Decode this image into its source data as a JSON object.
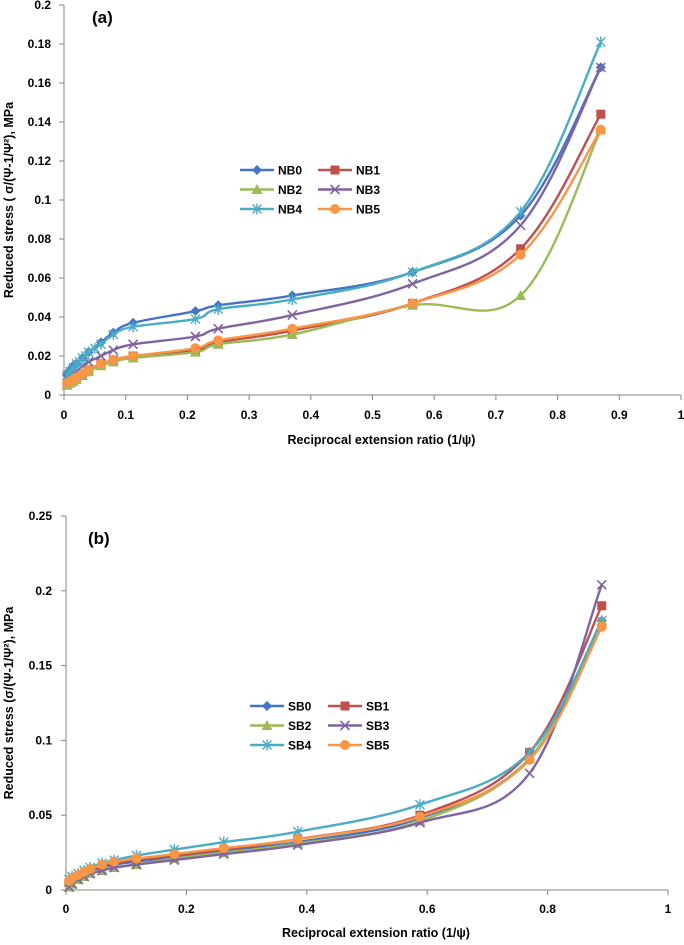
{
  "chart_data": [
    {
      "type": "line",
      "panel_label": "(a)",
      "xlabel": "Reciprocal extension ratio (1/ψ)",
      "ylabel": "Reduced stress ( σ/(Ψ-1/Ψ²), MPa",
      "xlim": [
        0,
        1
      ],
      "ylim": [
        0,
        0.2
      ],
      "xticks": [
        0,
        0.1,
        0.2,
        0.3,
        0.4,
        0.5,
        0.6,
        0.7,
        0.8,
        0.9,
        1
      ],
      "yticks": [
        0,
        0.02,
        0.04,
        0.06,
        0.08,
        0.1,
        0.12,
        0.14,
        0.16,
        0.18,
        0.2
      ],
      "xtick_labels": [
        "0",
        "0.1",
        "0.2",
        "0.3",
        "0.4",
        "0.5",
        "0.6",
        "0.7",
        "0.8",
        "0.9",
        "1"
      ],
      "ytick_labels": [
        "0",
        "0.02",
        "0.04",
        "0.06",
        "0.08",
        "0.1",
        "0.12",
        "0.14",
        "0.16",
        "0.18",
        "0.2"
      ],
      "legend_placement": "center",
      "series": [
        {
          "name": "NB0",
          "color": "#4472C4",
          "marker": "diamond",
          "x": [
            0.005,
            0.01,
            0.015,
            0.02,
            0.03,
            0.04,
            0.06,
            0.08,
            0.112,
            0.213,
            0.25,
            0.37,
            0.565,
            0.74,
            0.87
          ],
          "y": [
            0.011,
            0.013,
            0.015,
            0.016,
            0.019,
            0.022,
            0.027,
            0.032,
            0.037,
            0.043,
            0.046,
            0.051,
            0.063,
            0.092,
            0.168
          ]
        },
        {
          "name": "NB1",
          "color": "#C0504D",
          "marker": "square",
          "x": [
            0.005,
            0.01,
            0.015,
            0.02,
            0.03,
            0.04,
            0.06,
            0.08,
            0.112,
            0.213,
            0.25,
            0.37,
            0.565,
            0.74,
            0.87
          ],
          "y": [
            0.006,
            0.007,
            0.008,
            0.009,
            0.011,
            0.013,
            0.016,
            0.018,
            0.02,
            0.023,
            0.027,
            0.033,
            0.047,
            0.075,
            0.144
          ]
        },
        {
          "name": "NB2",
          "color": "#9BBB59",
          "marker": "triangle",
          "x": [
            0.005,
            0.01,
            0.015,
            0.02,
            0.03,
            0.04,
            0.06,
            0.08,
            0.112,
            0.213,
            0.25,
            0.37,
            0.565,
            0.74,
            0.87
          ],
          "y": [
            0.005,
            0.006,
            0.007,
            0.008,
            0.01,
            0.012,
            0.015,
            0.017,
            0.019,
            0.022,
            0.026,
            0.031,
            0.046,
            0.051,
            0.136
          ]
        },
        {
          "name": "NB3",
          "color": "#8064A2",
          "marker": "x",
          "x": [
            0.005,
            0.01,
            0.015,
            0.02,
            0.03,
            0.04,
            0.06,
            0.08,
            0.112,
            0.213,
            0.25,
            0.37,
            0.565,
            0.74,
            0.87
          ],
          "y": [
            0.008,
            0.009,
            0.011,
            0.012,
            0.015,
            0.017,
            0.02,
            0.023,
            0.026,
            0.03,
            0.034,
            0.041,
            0.057,
            0.087,
            0.168
          ]
        },
        {
          "name": "NB4",
          "color": "#4BACC6",
          "marker": "asterisk",
          "x": [
            0.005,
            0.01,
            0.015,
            0.02,
            0.025,
            0.03,
            0.035,
            0.04,
            0.05,
            0.06,
            0.08,
            0.112,
            0.213,
            0.25,
            0.37,
            0.565,
            0.74,
            0.87
          ],
          "y": [
            0.01,
            0.012,
            0.014,
            0.016,
            0.017,
            0.019,
            0.02,
            0.022,
            0.024,
            0.026,
            0.031,
            0.035,
            0.039,
            0.044,
            0.049,
            0.063,
            0.094,
            0.181
          ]
        },
        {
          "name": "NB5",
          "color": "#F79646",
          "marker": "circle",
          "x": [
            0.005,
            0.01,
            0.015,
            0.02,
            0.03,
            0.04,
            0.06,
            0.08,
            0.112,
            0.213,
            0.25,
            0.37,
            0.565,
            0.74,
            0.87
          ],
          "y": [
            0.006,
            0.007,
            0.008,
            0.009,
            0.011,
            0.013,
            0.016,
            0.018,
            0.02,
            0.024,
            0.028,
            0.034,
            0.047,
            0.072,
            0.136
          ]
        }
      ]
    },
    {
      "type": "line",
      "panel_label": "(b)",
      "xlabel": "Reciprocal extension ratio (1/ψ)",
      "ylabel": "Reduced stress (σ/(Ψ-1/Ψ²), MPa",
      "xlim": [
        0,
        1
      ],
      "ylim": [
        0,
        0.25
      ],
      "xticks": [
        0,
        0.2,
        0.4,
        0.6,
        0.8,
        1
      ],
      "yticks": [
        0,
        0.05,
        0.1,
        0.15,
        0.2,
        0.25
      ],
      "xtick_labels": [
        "0",
        "0.2",
        "0.4",
        "0.6",
        "0.8",
        "1"
      ],
      "ytick_labels": [
        "0",
        "0.05",
        "0.1",
        "0.15",
        "0.2",
        "0.25"
      ],
      "legend_placement": "center",
      "series": [
        {
          "name": "SB0",
          "color": "#4472C4",
          "marker": "diamond",
          "x": [
            0.005,
            0.01,
            0.02,
            0.03,
            0.04,
            0.06,
            0.08,
            0.117,
            0.18,
            0.262,
            0.385,
            0.588,
            0.77,
            0.89
          ],
          "y": [
            0.005,
            0.007,
            0.009,
            0.011,
            0.013,
            0.015,
            0.017,
            0.019,
            0.022,
            0.026,
            0.032,
            0.048,
            0.088,
            0.18
          ]
        },
        {
          "name": "SB1",
          "color": "#C0504D",
          "marker": "square",
          "x": [
            0.005,
            0.01,
            0.02,
            0.03,
            0.04,
            0.06,
            0.08,
            0.117,
            0.18,
            0.262,
            0.385,
            0.588,
            0.77,
            0.89
          ],
          "y": [
            0.005,
            0.007,
            0.009,
            0.011,
            0.013,
            0.016,
            0.018,
            0.02,
            0.023,
            0.027,
            0.034,
            0.05,
            0.092,
            0.19
          ]
        },
        {
          "name": "SB2",
          "color": "#9BBB59",
          "marker": "triangle",
          "x": [
            0.005,
            0.01,
            0.02,
            0.03,
            0.04,
            0.06,
            0.08,
            0.117,
            0.18,
            0.262,
            0.385,
            0.588,
            0.77,
            0.89
          ],
          "y": [
            0.002,
            0.004,
            0.007,
            0.009,
            0.011,
            0.013,
            0.015,
            0.017,
            0.021,
            0.025,
            0.031,
            0.046,
            0.088,
            0.18
          ]
        },
        {
          "name": "SB3",
          "color": "#8064A2",
          "marker": "x",
          "x": [
            0.005,
            0.01,
            0.02,
            0.03,
            0.04,
            0.06,
            0.08,
            0.117,
            0.18,
            0.262,
            0.385,
            0.588,
            0.77,
            0.89
          ],
          "y": [
            0.002,
            0.004,
            0.007,
            0.009,
            0.011,
            0.013,
            0.015,
            0.017,
            0.02,
            0.024,
            0.03,
            0.045,
            0.078,
            0.204
          ]
        },
        {
          "name": "SB4",
          "color": "#4BACC6",
          "marker": "asterisk",
          "x": [
            0.005,
            0.01,
            0.02,
            0.03,
            0.04,
            0.06,
            0.08,
            0.117,
            0.18,
            0.262,
            0.385,
            0.588,
            0.77,
            0.89
          ],
          "y": [
            0.007,
            0.009,
            0.011,
            0.013,
            0.015,
            0.018,
            0.02,
            0.023,
            0.027,
            0.032,
            0.039,
            0.057,
            0.092,
            0.18
          ]
        },
        {
          "name": "SB5",
          "color": "#F79646",
          "marker": "circle",
          "x": [
            0.005,
            0.01,
            0.02,
            0.03,
            0.04,
            0.06,
            0.08,
            0.117,
            0.18,
            0.262,
            0.385,
            0.588,
            0.77,
            0.89
          ],
          "y": [
            0.006,
            0.008,
            0.01,
            0.012,
            0.014,
            0.017,
            0.019,
            0.021,
            0.024,
            0.028,
            0.034,
            0.049,
            0.087,
            0.176
          ]
        }
      ]
    }
  ]
}
